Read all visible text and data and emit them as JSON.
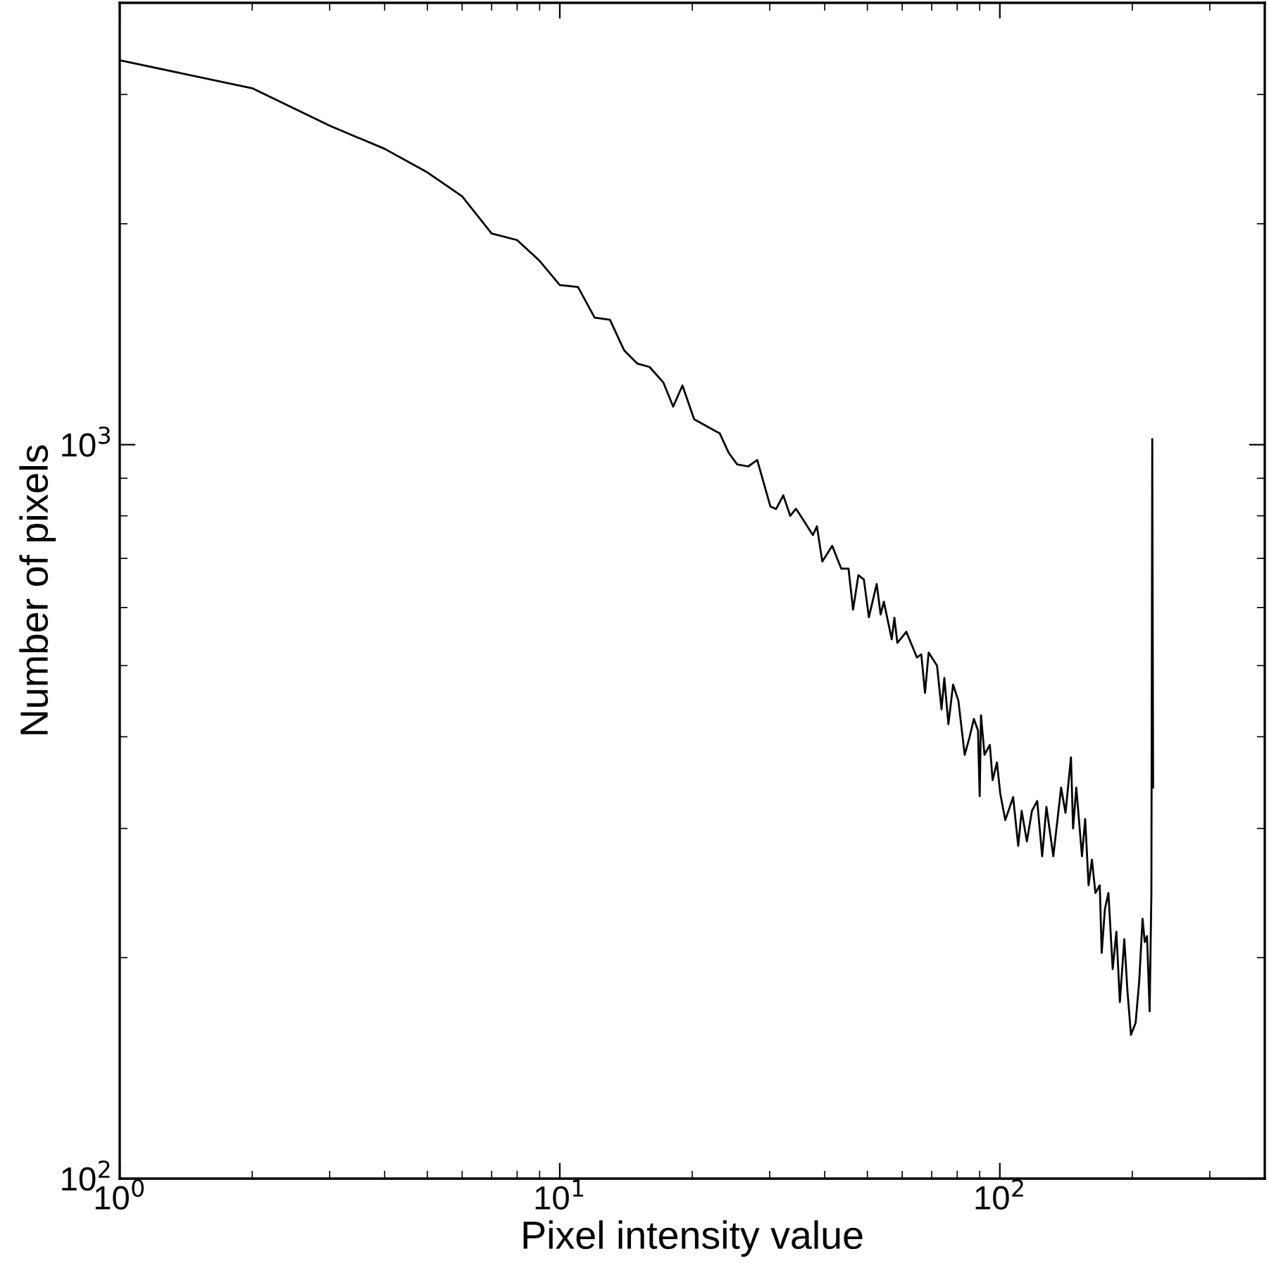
{
  "chart_data": {
    "type": "line",
    "xlabel": "Pixel intensity value",
    "ylabel": "Number of pixels",
    "log": "xy",
    "xlim": [
      1,
      400
    ],
    "ylim": [
      100,
      4000
    ],
    "xticks": [
      {
        "value": 1,
        "label": "10$^{0}$"
      },
      {
        "value": 10,
        "label": "10$^{1}$"
      },
      {
        "value": 100,
        "label": "10$^{2}$"
      }
    ],
    "yticks": [
      {
        "value": 100,
        "label": "10$^{2}$"
      },
      {
        "value": 1000,
        "label": "10$^{3}$"
      }
    ],
    "grid": false,
    "marker": "none",
    "line_style": "solid",
    "series": [
      {
        "color": "#000000",
        "x": [
          1,
          2,
          3,
          4,
          5,
          6,
          7,
          8,
          9,
          10,
          11,
          12,
          13,
          14,
          15,
          16,
          17.2,
          18.1,
          19,
          20.2,
          23.1,
          24.2,
          25.3,
          26.8,
          28.1,
          30.1,
          31,
          32.2,
          33.4,
          34.4,
          35.7,
          37.6,
          38.4,
          39.5,
          41.6,
          43.6,
          45.3,
          46.4,
          47.7,
          49.1,
          50.4,
          52.5,
          53.6,
          54.5,
          56.8,
          57.6,
          58.5,
          61.3,
          64.8,
          66.3,
          67.6,
          68.9,
          72,
          73.7,
          74.8,
          76.4,
          78.3,
          80.5,
          83.2,
          85.3,
          87.3,
          89.2,
          90,
          90.6,
          92.3,
          94.9,
          96.3,
          98.5,
          100.2,
          102.9,
          107.2,
          110.1,
          112.1,
          115.2,
          118.3,
          121.6,
          124.8,
          127.6,
          132.3,
          137.8,
          141,
          145.1,
          146.7,
          149.2,
          153.7,
          156.3,
          159.1,
          161.9,
          164.9,
          168.7,
          170.4,
          173.3,
          176.5,
          180.5,
          184,
          187.4,
          191.8,
          195,
          198.6,
          203.5,
          207.4,
          211,
          213.5,
          216,
          219,
          221,
          222,
          223
        ],
        "values": [
          3340,
          3060,
          2720,
          2530,
          2350,
          2180,
          1940,
          1900,
          1780,
          1650,
          1640,
          1490,
          1480,
          1345,
          1290,
          1276,
          1215,
          1127,
          1204,
          1083,
          1036,
          975,
          940,
          934,
          953,
          824,
          817,
          853,
          800,
          818,
          791,
          753,
          774,
          693,
          728,
          678,
          678,
          596,
          664,
          655,
          582,
          646,
          587,
          611,
          543,
          581,
          537,
          556,
          513,
          518,
          459,
          521,
          500,
          436,
          481,
          416,
          471,
          448,
          378,
          399,
          423,
          408,
          332,
          428,
          378,
          390,
          349,
          369,
          335,
          308,
          331,
          284,
          317,
          288,
          317,
          327,
          275,
          321,
          275,
          341,
          315,
          375,
          300,
          341,
          275,
          309,
          251,
          272,
          245,
          251,
          203,
          233,
          245,
          193,
          217,
          174,
          212,
          180,
          157,
          163,
          186,
          226,
          210,
          214,
          169,
          245,
          1018,
          341
        ]
      }
    ]
  }
}
